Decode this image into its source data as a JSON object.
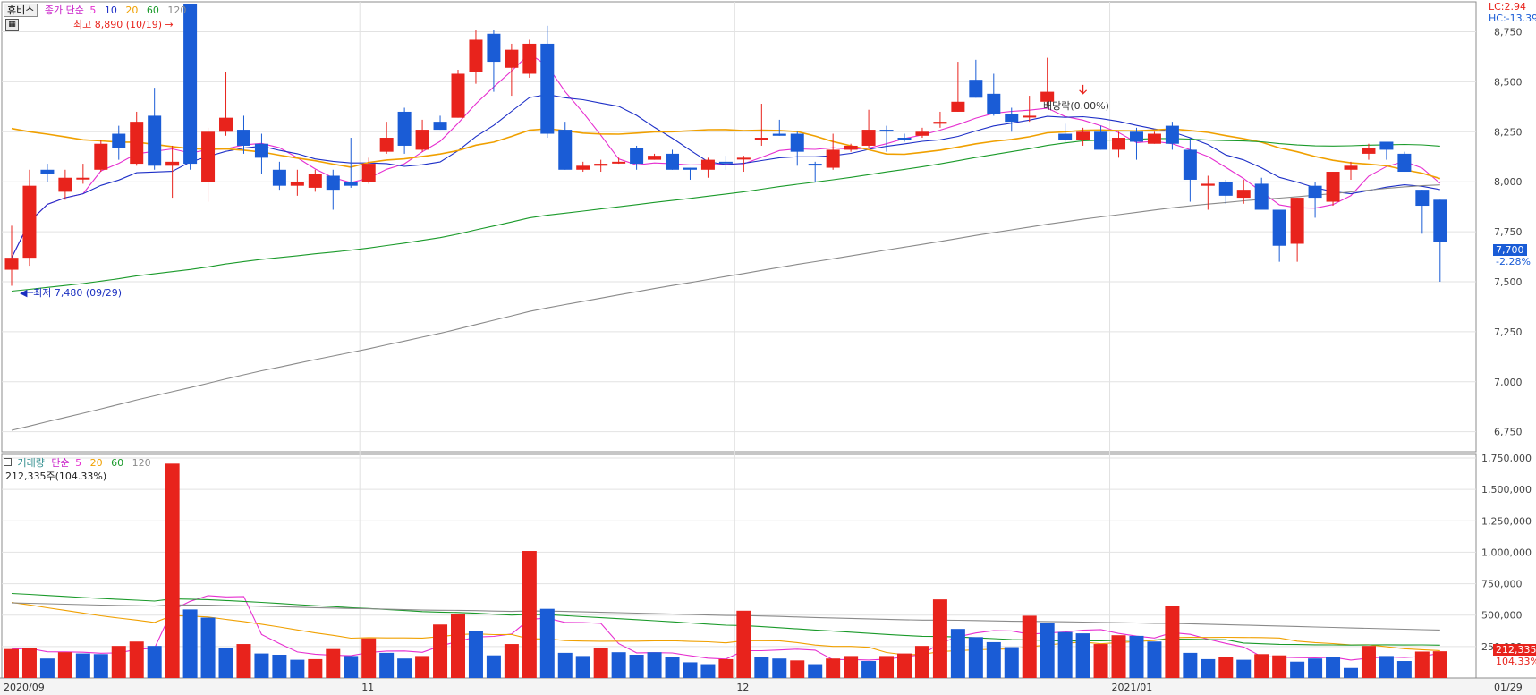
{
  "price_header": {
    "stock_name": "휴비스",
    "ma_label": "종가 단순",
    "ma_periods": [
      "5",
      "10",
      "20",
      "60",
      "120"
    ],
    "ma_colors": [
      "#e62fd0",
      "#1d2fc7",
      "#f0a000",
      "#1a9a2a",
      "#8a8a8a"
    ],
    "high_note": "최고 8,890 (10/19)",
    "low_note": "최저 7,480 (09/29)",
    "dividend_note": "배당락(0.00%)",
    "lc_text": "LC:2.94",
    "hc_text": "HC:-13.39"
  },
  "volume_header": {
    "label": "거래량",
    "ma_label": "단순",
    "ma_periods": [
      "5",
      "20",
      "60",
      "120"
    ],
    "ma_colors": [
      "#e62fd0",
      "#f0a000",
      "#1a9a2a",
      "#8a8a8a"
    ],
    "current": "212,335주(104.33%)"
  },
  "last_price_tag": {
    "price": "7,700",
    "change": "-2.28%"
  },
  "last_volume_tag": {
    "volume": "212,335",
    "pct": "104.33%"
  },
  "x_labels": [
    {
      "i": 0,
      "text": "2020/09"
    },
    {
      "i": 20,
      "text": "11"
    },
    {
      "i": 41,
      "text": "12"
    },
    {
      "i": 62,
      "text": "2021/01"
    },
    {
      "i": 83,
      "text": "01/29"
    }
  ],
  "chart_data": {
    "type": "candlestick",
    "price_axis": {
      "min": 6650,
      "max": 8900,
      "ticks": [
        6750,
        7000,
        7250,
        7500,
        7750,
        8000,
        8250,
        8500,
        8750
      ],
      "tick_labels": [
        "6,750",
        "7,000",
        "7,250",
        "7,500",
        "7,750",
        "8,000",
        "8,250",
        "8,500",
        "8,750"
      ]
    },
    "volume_axis": {
      "min": 0,
      "max": 1750000,
      "ticks": [
        250000,
        500000,
        750000,
        1000000,
        1250000,
        1500000,
        1750000
      ],
      "tick_labels": [
        "250,000",
        "500,000",
        "750,000",
        "1,000,000",
        "1,250,000",
        "1,500,000",
        "1,750,000"
      ]
    },
    "colors": {
      "up": "#e8231c",
      "down": "#1a5cd6"
    },
    "candles": [
      [
        7560,
        7620,
        7480,
        7780,
        1
      ],
      [
        7620,
        7980,
        7580,
        8060,
        1
      ],
      [
        8040,
        8060,
        8000,
        8090,
        -1
      ],
      [
        7950,
        8020,
        7910,
        8060,
        1
      ],
      [
        8020,
        8020,
        7990,
        8090,
        1
      ],
      [
        8060,
        8190,
        8050,
        8210,
        1
      ],
      [
        8240,
        8170,
        8110,
        8280,
        -1
      ],
      [
        8090,
        8300,
        8080,
        8350,
        1
      ],
      [
        8330,
        8080,
        8060,
        8470,
        -1
      ],
      [
        8100,
        8080,
        7920,
        8180,
        1
      ],
      [
        8890,
        8090,
        8060,
        8890,
        -1
      ],
      [
        8000,
        8250,
        7900,
        8270,
        1
      ],
      [
        8250,
        8320,
        8230,
        8550,
        1
      ],
      [
        8260,
        8180,
        8140,
        8330,
        -1
      ],
      [
        8190,
        8120,
        8040,
        8240,
        -1
      ],
      [
        8060,
        7980,
        7960,
        8100,
        -1
      ],
      [
        7980,
        8000,
        7930,
        8060,
        1
      ],
      [
        7970,
        8040,
        7950,
        8060,
        1
      ],
      [
        8030,
        7960,
        7860,
        8060,
        -1
      ],
      [
        7980,
        8000,
        7970,
        8220,
        -1
      ],
      [
        8000,
        8090,
        7990,
        8120,
        1
      ],
      [
        8150,
        8220,
        8140,
        8300,
        1
      ],
      [
        8350,
        8180,
        8140,
        8370,
        -1
      ],
      [
        8160,
        8260,
        8150,
        8310,
        1
      ],
      [
        8300,
        8260,
        8260,
        8330,
        -1
      ],
      [
        8320,
        8540,
        8320,
        8560,
        1
      ],
      [
        8550,
        8710,
        8490,
        8760,
        1
      ],
      [
        8740,
        8600,
        8450,
        8760,
        -1
      ],
      [
        8570,
        8660,
        8430,
        8690,
        1
      ],
      [
        8540,
        8690,
        8520,
        8710,
        1
      ],
      [
        8690,
        8240,
        8220,
        8780,
        -1
      ],
      [
        8260,
        8060,
        8060,
        8300,
        -1
      ],
      [
        8060,
        8080,
        8050,
        8100,
        1
      ],
      [
        8080,
        8090,
        8050,
        8110,
        1
      ],
      [
        8100,
        8100,
        8090,
        8120,
        1
      ],
      [
        8170,
        8090,
        8060,
        8180,
        -1
      ],
      [
        8130,
        8110,
        8110,
        8140,
        1
      ],
      [
        8140,
        8060,
        8060,
        8160,
        -1
      ],
      [
        8070,
        8060,
        8010,
        8070,
        -1
      ],
      [
        8060,
        8110,
        8020,
        8120,
        1
      ],
      [
        8100,
        8100,
        8060,
        8130,
        -1
      ],
      [
        8120,
        8120,
        8050,
        8130,
        1
      ],
      [
        8220,
        8220,
        8180,
        8390,
        1
      ],
      [
        8240,
        8230,
        8230,
        8310,
        -1
      ],
      [
        8240,
        8150,
        8080,
        8250,
        -1
      ],
      [
        8090,
        8090,
        8000,
        8100,
        -1
      ],
      [
        8070,
        8160,
        8060,
        8240,
        1
      ],
      [
        8160,
        8180,
        8150,
        8190,
        1
      ],
      [
        8180,
        8260,
        8170,
        8360,
        1
      ],
      [
        8260,
        8260,
        8150,
        8280,
        -1
      ],
      [
        8220,
        8220,
        8200,
        8240,
        -1
      ],
      [
        8230,
        8250,
        8220,
        8270,
        1
      ],
      [
        8290,
        8300,
        8270,
        8350,
        1
      ],
      [
        8350,
        8400,
        8350,
        8600,
        1
      ],
      [
        8510,
        8420,
        8420,
        8610,
        -1
      ],
      [
        8440,
        8340,
        8330,
        8540,
        -1
      ],
      [
        8340,
        8300,
        8250,
        8370,
        -1
      ],
      [
        8330,
        8330,
        8300,
        8430,
        1
      ],
      [
        8400,
        8450,
        8380,
        8620,
        1
      ],
      [
        8240,
        8210,
        8200,
        8290,
        -1
      ],
      [
        8210,
        8250,
        8180,
        8270,
        1
      ],
      [
        8250,
        8160,
        8160,
        8280,
        -1
      ],
      [
        8220,
        8160,
        8120,
        8250,
        1
      ],
      [
        8250,
        8200,
        8110,
        8270,
        -1
      ],
      [
        8190,
        8240,
        8190,
        8250,
        1
      ],
      [
        8280,
        8190,
        8160,
        8300,
        -1
      ],
      [
        8160,
        8010,
        7900,
        8220,
        -1
      ],
      [
        7980,
        7990,
        7860,
        8030,
        1
      ],
      [
        8000,
        7930,
        7890,
        8010,
        -1
      ],
      [
        7920,
        7960,
        7890,
        8010,
        1
      ],
      [
        7990,
        7860,
        7860,
        8020,
        -1
      ],
      [
        7860,
        7680,
        7600,
        7860,
        -1
      ],
      [
        7690,
        7920,
        7600,
        7920,
        1
      ],
      [
        7980,
        7920,
        7820,
        8000,
        -1
      ],
      [
        7900,
        8050,
        7880,
        8050,
        1
      ],
      [
        8060,
        8080,
        8010,
        8100,
        1
      ],
      [
        8140,
        8170,
        8110,
        8190,
        1
      ],
      [
        8200,
        8160,
        8110,
        8200,
        -1
      ],
      [
        8140,
        8050,
        8050,
        8150,
        -1
      ],
      [
        7960,
        7880,
        7740,
        7960,
        -1
      ],
      [
        7910,
        7700,
        7500,
        7910,
        -1
      ]
    ],
    "volumes": [
      [
        230000,
        1
      ],
      [
        240000,
        1
      ],
      [
        155000,
        -1
      ],
      [
        205000,
        1
      ],
      [
        195000,
        -1
      ],
      [
        190000,
        -1
      ],
      [
        255000,
        1
      ],
      [
        290000,
        1
      ],
      [
        255000,
        -1
      ],
      [
        1705000,
        1
      ],
      [
        545000,
        -1
      ],
      [
        480000,
        -1
      ],
      [
        240000,
        -1
      ],
      [
        270000,
        1
      ],
      [
        195000,
        -1
      ],
      [
        185000,
        -1
      ],
      [
        145000,
        -1
      ],
      [
        150000,
        1
      ],
      [
        230000,
        1
      ],
      [
        175000,
        -1
      ],
      [
        315000,
        1
      ],
      [
        200000,
        -1
      ],
      [
        155000,
        -1
      ],
      [
        175000,
        1
      ],
      [
        425000,
        1
      ],
      [
        505000,
        1
      ],
      [
        370000,
        -1
      ],
      [
        180000,
        -1
      ],
      [
        270000,
        1
      ],
      [
        1010000,
        1
      ],
      [
        550000,
        -1
      ],
      [
        200000,
        -1
      ],
      [
        175000,
        -1
      ],
      [
        235000,
        1
      ],
      [
        205000,
        -1
      ],
      [
        185000,
        -1
      ],
      [
        205000,
        -1
      ],
      [
        165000,
        -1
      ],
      [
        125000,
        -1
      ],
      [
        110000,
        -1
      ],
      [
        150000,
        1
      ],
      [
        535000,
        1
      ],
      [
        165000,
        -1
      ],
      [
        155000,
        -1
      ],
      [
        140000,
        1
      ],
      [
        110000,
        -1
      ],
      [
        155000,
        1
      ],
      [
        175000,
        1
      ],
      [
        135000,
        -1
      ],
      [
        175000,
        1
      ],
      [
        195000,
        1
      ],
      [
        255000,
        1
      ],
      [
        625000,
        1
      ],
      [
        390000,
        -1
      ],
      [
        325000,
        -1
      ],
      [
        285000,
        -1
      ],
      [
        245000,
        -1
      ],
      [
        495000,
        1
      ],
      [
        440000,
        -1
      ],
      [
        365000,
        -1
      ],
      [
        355000,
        -1
      ],
      [
        270000,
        1
      ],
      [
        340000,
        1
      ],
      [
        335000,
        -1
      ],
      [
        290000,
        -1
      ],
      [
        570000,
        1
      ],
      [
        200000,
        -1
      ],
      [
        150000,
        -1
      ],
      [
        165000,
        1
      ],
      [
        145000,
        -1
      ],
      [
        190000,
        1
      ],
      [
        180000,
        1
      ],
      [
        130000,
        -1
      ],
      [
        155000,
        -1
      ],
      [
        170000,
        -1
      ],
      [
        80000,
        -1
      ],
      [
        255000,
        1
      ],
      [
        175000,
        -1
      ],
      [
        135000,
        -1
      ],
      [
        210000,
        1
      ],
      [
        212335,
        1
      ]
    ]
  }
}
